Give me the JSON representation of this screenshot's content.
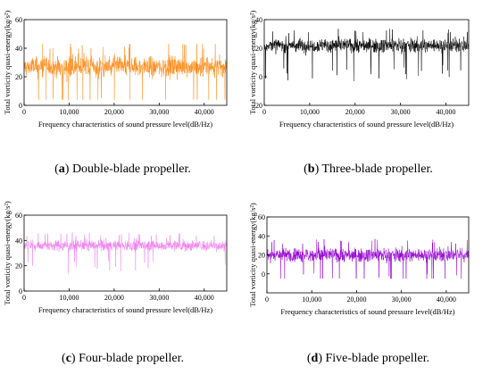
{
  "chart_data": [
    {
      "type": "line",
      "xlabel": "Frequency characteristics of sound pressure level(dB/Hz)",
      "ylabel": "Total vorticity quasi-energy(kg/s²)",
      "xlim": [
        0,
        45000
      ],
      "ylim": [
        0,
        60
      ],
      "xticks": [
        "0",
        "10,000",
        "20,000",
        "30,000",
        "40,000"
      ],
      "yticks": [
        "0",
        "20",
        "40",
        "60"
      ],
      "color": "#ff8c1a",
      "series": [
        {
          "mean": 27,
          "spread": 14,
          "min": 4,
          "max": 43
        }
      ],
      "caption": {
        "label": "a",
        "text": " Double-blade propeller."
      }
    },
    {
      "type": "line",
      "xlabel": "Frequency characteristics of sound pressure level(dB/Hz)",
      "ylabel": "Total vorticity quasi-energy(kg/s²)",
      "xlim": [
        0,
        45000
      ],
      "ylim": [
        -20,
        40
      ],
      "xticks": [
        "0",
        "10,000",
        "20,000",
        "30,000",
        "40,000"
      ],
      "yticks": [
        "-20",
        "0",
        "20",
        "40"
      ],
      "color": "#000000",
      "series": [
        {
          "mean": 22,
          "spread": 9,
          "min": -13,
          "max": 38
        }
      ],
      "caption": {
        "label": "b",
        "text": " Three-blade propeller."
      }
    },
    {
      "type": "line",
      "xlabel": "Frequency characteristics of sound pressure level(dB/Hz)",
      "ylabel": "Total vorticity quasi-energy(kg/s²)",
      "xlim": [
        0,
        45000
      ],
      "ylim": [
        0,
        60
      ],
      "xticks": [
        "0",
        "10,000",
        "20,000",
        "30,000",
        "40,000"
      ],
      "yticks": [
        "0",
        "20",
        "40",
        "60"
      ],
      "color": "#f07ef0",
      "series": [
        {
          "mean": 36,
          "spread": 8,
          "min": 5,
          "max": 47
        }
      ],
      "caption": {
        "label": "c",
        "text": " Four-blade propeller."
      }
    },
    {
      "type": "line",
      "xlabel": "Frequency characteristics of sound pressure level(dB/Hz)",
      "ylabel": "Total vorticity quasi-energy(kg/s²)",
      "xlim": [
        0,
        45000
      ],
      "ylim": [
        -20,
        60
      ],
      "xticks": [
        "0",
        "10,000",
        "20,000",
        "30,000",
        "40,000"
      ],
      "yticks": [
        "0",
        "20",
        "40",
        "60"
      ],
      "color": "#9400d3",
      "series": [
        {
          "mean": 20,
          "spread": 13,
          "min": -5,
          "max": 37
        }
      ],
      "caption": {
        "label": "d",
        "text": " Five-blade propeller."
      }
    }
  ]
}
